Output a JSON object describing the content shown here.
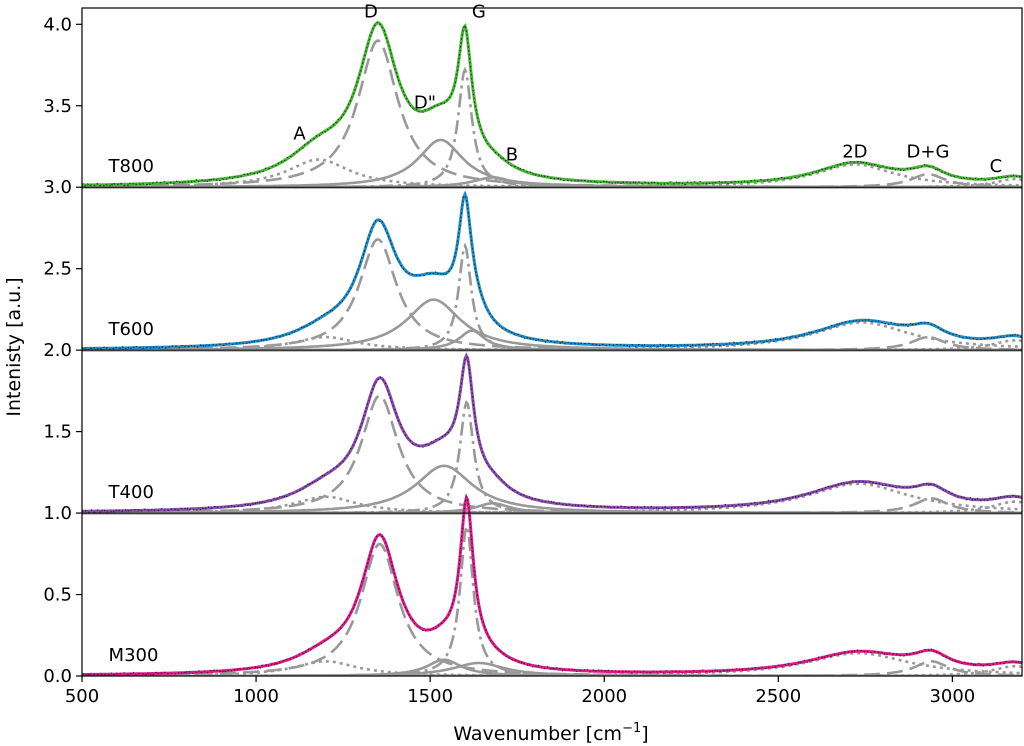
{
  "chart_data": {
    "type": "line",
    "title": "",
    "xlabel": "Wavenumber [cm",
    "xlabel_sup": "−1",
    "xlabel_end": "]",
    "ylabel": "Intenisty [a.u.]",
    "xlim": [
      500,
      3200
    ],
    "ylim": [
      0,
      4.1
    ],
    "xticks": [
      {
        "value": 500,
        "label": "500"
      },
      {
        "value": 1000,
        "label": "1000"
      },
      {
        "value": 1500,
        "label": "1500"
      },
      {
        "value": 2000,
        "label": "2000"
      },
      {
        "value": 2500,
        "label": "2500"
      },
      {
        "value": 3000,
        "label": "3000"
      }
    ],
    "yticks": [
      {
        "value": 0.0,
        "label": "0.0"
      },
      {
        "value": 0.5,
        "label": "0.5"
      },
      {
        "value": 1.0,
        "label": "1.0"
      },
      {
        "value": 1.5,
        "label": "1.5"
      },
      {
        "value": 2.0,
        "label": "2.0"
      },
      {
        "value": 2.5,
        "label": "2.5"
      },
      {
        "value": 3.0,
        "label": "3.0"
      },
      {
        "value": 3.5,
        "label": "3.5"
      },
      {
        "value": 4.0,
        "label": "4.0"
      }
    ],
    "panel_separators": [
      1.0,
      2.0,
      3.0
    ],
    "fit_color": "#999999",
    "data_color": "#222222",
    "series": [
      {
        "name": "T800",
        "offset": 3.0,
        "color": "#44b832",
        "label_pos": [
          605,
          3.13
        ],
        "peaks": [
          {
            "name": "A",
            "center": 1180,
            "height": 0.17,
            "width": 110,
            "style": "dotted"
          },
          {
            "name": "D",
            "center": 1350,
            "height": 0.9,
            "width": 70,
            "style": "dashed"
          },
          {
            "name": "D\"",
            "center": 1530,
            "height": 0.29,
            "width": 80,
            "style": "solid"
          },
          {
            "name": "G",
            "center": 1600,
            "height": 0.72,
            "width": 24,
            "style": "dashdot"
          },
          {
            "name": "B",
            "center": 1680,
            "height": 0.06,
            "width": 70,
            "style": "solid"
          },
          {
            "name": "2D",
            "center": 2720,
            "height": 0.14,
            "width": 140,
            "style": "dotted"
          },
          {
            "name": "D+G",
            "center": 2930,
            "height": 0.08,
            "width": 60,
            "style": "dashed"
          },
          {
            "name": "C",
            "center": 3180,
            "height": 0.05,
            "width": 70,
            "style": "dotted"
          }
        ]
      },
      {
        "name": "T600",
        "offset": 2.0,
        "color": "#1f8ec8",
        "label_pos": [
          605,
          2.13
        ],
        "peaks": [
          {
            "name": "A",
            "center": 1200,
            "height": 0.08,
            "width": 110,
            "style": "dotted"
          },
          {
            "name": "D",
            "center": 1350,
            "height": 0.68,
            "width": 65,
            "style": "dashed"
          },
          {
            "name": "D\"",
            "center": 1510,
            "height": 0.31,
            "width": 95,
            "style": "solid"
          },
          {
            "name": "G",
            "center": 1600,
            "height": 0.64,
            "width": 22,
            "style": "dashdot"
          },
          {
            "name": "B",
            "center": 1620,
            "height": 0.12,
            "width": 45,
            "style": "solid"
          },
          {
            "name": "2D",
            "center": 2740,
            "height": 0.17,
            "width": 170,
            "style": "dotted"
          },
          {
            "name": "D+G",
            "center": 2930,
            "height": 0.08,
            "width": 60,
            "style": "dashed"
          },
          {
            "name": "C",
            "center": 3180,
            "height": 0.06,
            "width": 80,
            "style": "dotted"
          }
        ]
      },
      {
        "name": "T400",
        "offset": 1.0,
        "color": "#8a4ab0",
        "label_pos": [
          605,
          1.13
        ],
        "peaks": [
          {
            "name": "A",
            "center": 1200,
            "height": 0.1,
            "width": 110,
            "style": "dotted"
          },
          {
            "name": "D",
            "center": 1355,
            "height": 0.72,
            "width": 65,
            "style": "dashed"
          },
          {
            "name": "D\"",
            "center": 1540,
            "height": 0.29,
            "width": 100,
            "style": "solid"
          },
          {
            "name": "G",
            "center": 1605,
            "height": 0.68,
            "width": 24,
            "style": "dashdot"
          },
          {
            "name": "B",
            "center": 1680,
            "height": 0.06,
            "width": 60,
            "style": "solid"
          },
          {
            "name": "2D",
            "center": 2730,
            "height": 0.18,
            "width": 180,
            "style": "dotted"
          },
          {
            "name": "D+G",
            "center": 2940,
            "height": 0.09,
            "width": 60,
            "style": "dashed"
          },
          {
            "name": "C",
            "center": 3180,
            "height": 0.07,
            "width": 80,
            "style": "dotted"
          }
        ]
      },
      {
        "name": "M300",
        "offset": 0.0,
        "color": "#e0198c",
        "label_pos": [
          605,
          0.13
        ],
        "peaks": [
          {
            "name": "A",
            "center": 1200,
            "height": 0.09,
            "width": 110,
            "style": "dotted"
          },
          {
            "name": "D",
            "center": 1355,
            "height": 0.81,
            "width": 65,
            "style": "dashed"
          },
          {
            "name": "D\"",
            "center": 1540,
            "height": 0.1,
            "width": 60,
            "style": "solid"
          },
          {
            "name": "G",
            "center": 1605,
            "height": 0.92,
            "width": 23,
            "style": "dashdot"
          },
          {
            "name": "B",
            "center": 1640,
            "height": 0.08,
            "width": 90,
            "style": "solid"
          },
          {
            "name": "2D",
            "center": 2730,
            "height": 0.14,
            "width": 180,
            "style": "dotted"
          },
          {
            "name": "D+G",
            "center": 2940,
            "height": 0.09,
            "width": 60,
            "style": "dashed"
          },
          {
            "name": "C",
            "center": 3180,
            "height": 0.06,
            "width": 80,
            "style": "dotted"
          }
        ]
      }
    ],
    "annotations": [
      {
        "text": "A",
        "x": 1125,
        "y": 3.33
      },
      {
        "text": "D",
        "x": 1330,
        "y": 4.08
      },
      {
        "text": "D\"",
        "x": 1485,
        "y": 3.52
      },
      {
        "text": "G",
        "x": 1640,
        "y": 4.08
      },
      {
        "text": "B",
        "x": 1735,
        "y": 3.2
      },
      {
        "text": "2D",
        "x": 2720,
        "y": 3.22
      },
      {
        "text": "D+G",
        "x": 2930,
        "y": 3.22
      },
      {
        "text": "C",
        "x": 3125,
        "y": 3.13
      }
    ]
  }
}
